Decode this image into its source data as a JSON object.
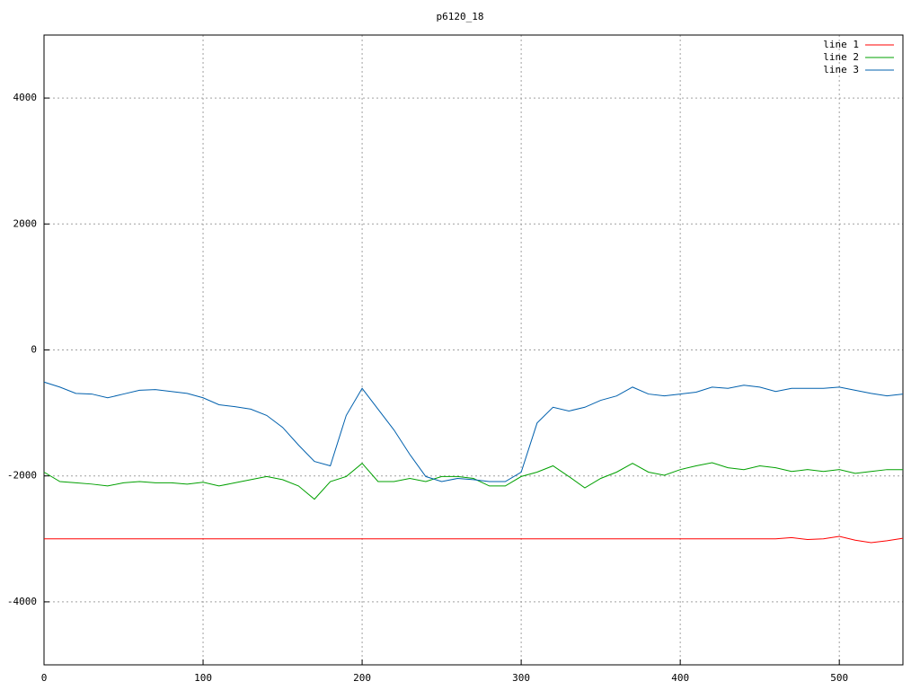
{
  "chart_data": {
    "type": "line",
    "title": "p6120_18",
    "x": [
      0,
      10,
      20,
      30,
      40,
      50,
      60,
      70,
      80,
      90,
      100,
      110,
      120,
      130,
      140,
      150,
      160,
      170,
      180,
      190,
      200,
      210,
      220,
      230,
      240,
      250,
      260,
      270,
      280,
      290,
      300,
      310,
      320,
      330,
      340,
      350,
      360,
      370,
      380,
      390,
      400,
      410,
      420,
      430,
      440,
      450,
      460,
      470,
      480,
      490,
      500,
      510,
      520,
      530,
      540
    ],
    "series": [
      {
        "name": "line 1",
        "color": "#ff0000",
        "values": [
          -3000,
          -3000,
          -3000,
          -3000,
          -3000,
          -3000,
          -3000,
          -3000,
          -3000,
          -3000,
          -3000,
          -3000,
          -3000,
          -3000,
          -3000,
          -3000,
          -3000,
          -3000,
          -3000,
          -3000,
          -3000,
          -3000,
          -3000,
          -3000,
          -3000,
          -3000,
          -3000,
          -3000,
          -3000,
          -3000,
          -3000,
          -3000,
          -3000,
          -3000,
          -3000,
          -3000,
          -3000,
          -3000,
          -3000,
          -3000,
          -3000,
          -3000,
          -3000,
          -3000,
          -3000,
          -3000,
          -3000,
          -2980,
          -3010,
          -3000,
          -2960,
          -3020,
          -3060,
          -3030,
          -2990
        ]
      },
      {
        "name": "line 2",
        "color": "#00a000",
        "values": [
          -1940,
          -2090,
          -2110,
          -2130,
          -2160,
          -2110,
          -2090,
          -2110,
          -2110,
          -2130,
          -2100,
          -2160,
          -2110,
          -2060,
          -2010,
          -2060,
          -2160,
          -2370,
          -2090,
          -2010,
          -1800,
          -2090,
          -2090,
          -2040,
          -2090,
          -2010,
          -2010,
          -2040,
          -2160,
          -2160,
          -2010,
          -1940,
          -1840,
          -2010,
          -2190,
          -2040,
          -1940,
          -1800,
          -1940,
          -1990,
          -1900,
          -1840,
          -1790,
          -1870,
          -1900,
          -1840,
          -1870,
          -1930,
          -1900,
          -1930,
          -1900,
          -1960,
          -1930,
          -1900,
          -1900
        ]
      },
      {
        "name": "line 3",
        "color": "#0060ad",
        "values": [
          -510,
          -590,
          -690,
          -700,
          -760,
          -700,
          -640,
          -630,
          -660,
          -690,
          -760,
          -870,
          -900,
          -940,
          -1040,
          -1230,
          -1510,
          -1770,
          -1840,
          -1040,
          -610,
          -940,
          -1270,
          -1660,
          -2010,
          -2090,
          -2040,
          -2060,
          -2090,
          -2090,
          -1940,
          -1160,
          -910,
          -970,
          -910,
          -800,
          -730,
          -590,
          -700,
          -730,
          -700,
          -670,
          -590,
          -610,
          -560,
          -590,
          -660,
          -610,
          -610,
          -610,
          -590,
          -640,
          -690,
          -730,
          -700
        ]
      }
    ],
    "xlim": [
      0,
      540
    ],
    "ylim": [
      -5000,
      5000
    ],
    "xticks": [
      0,
      100,
      200,
      300,
      400,
      500
    ],
    "yticks": [
      -4000,
      -2000,
      0,
      2000,
      4000
    ],
    "grid": true,
    "legend": "top-right"
  }
}
